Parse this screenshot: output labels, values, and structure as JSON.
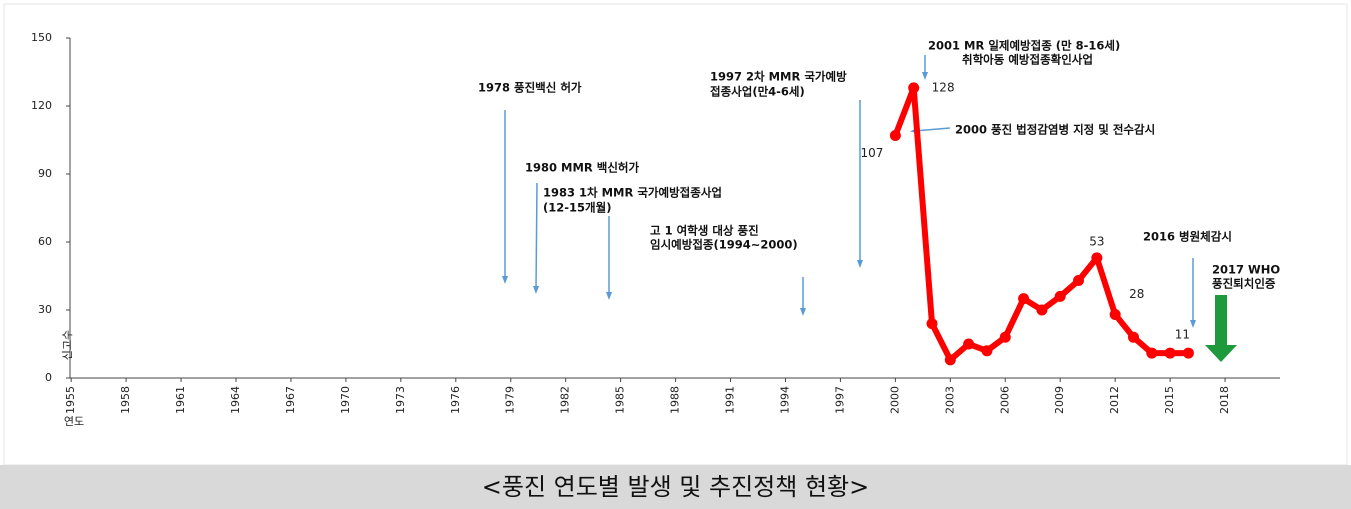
{
  "chart_data": {
    "type": "line",
    "x": [
      2000,
      2001,
      2002,
      2003,
      2004,
      2005,
      2006,
      2007,
      2008,
      2009,
      2010,
      2011,
      2012,
      2013,
      2014,
      2015,
      2016
    ],
    "series": [
      {
        "color": "#ff0000",
        "values": [
          107,
          128,
          24,
          8,
          15,
          12,
          18,
          35,
          30,
          36,
          43,
          53,
          28,
          18,
          11,
          11,
          11
        ],
        "value_labels": [
          "107",
          "128",
          null,
          null,
          null,
          null,
          null,
          null,
          null,
          null,
          null,
          "53",
          "28",
          null,
          null,
          null,
          "11"
        ]
      }
    ],
    "xlim": [
      1954.5,
      2021
    ],
    "xticks": [
      1955,
      1958,
      1961,
      1964,
      1967,
      1970,
      1973,
      1976,
      1979,
      1982,
      1985,
      1988,
      1991,
      1994,
      1997,
      2000,
      2003,
      2006,
      2009,
      2012,
      2015,
      2018
    ],
    "ylim": [
      0,
      150
    ],
    "yticks": [
      0,
      30,
      60,
      90,
      120,
      150
    ],
    "ylabel": "신고수",
    "xlabel": "연도",
    "annotations": [
      [
        "1978 풍진백신 허가"
      ],
      [
        "1980 MMR 백신허가"
      ],
      [
        "1983 1차 MMR 국가예방접종사업",
        "(12-15개월)"
      ],
      [
        "고 1 여학생 대상 풍진",
        "임시예방접종(1994~2000)"
      ],
      [
        "1997 2차 MMR 국가예방",
        "접종사업(만4-6세)"
      ],
      [
        "2001 MR 일제예방접종 (만 8-16세)",
        "취학아동 예방접종확인사업"
      ],
      [
        "2000 풍진 법정감염병 지정 및 전수감시"
      ],
      [
        "2016 병원체감시"
      ],
      [
        "2017 WHO",
        "풍진퇴치인증"
      ]
    ],
    "caption": "<풍진 연도별 발생 및 추진정책 현황>"
  }
}
